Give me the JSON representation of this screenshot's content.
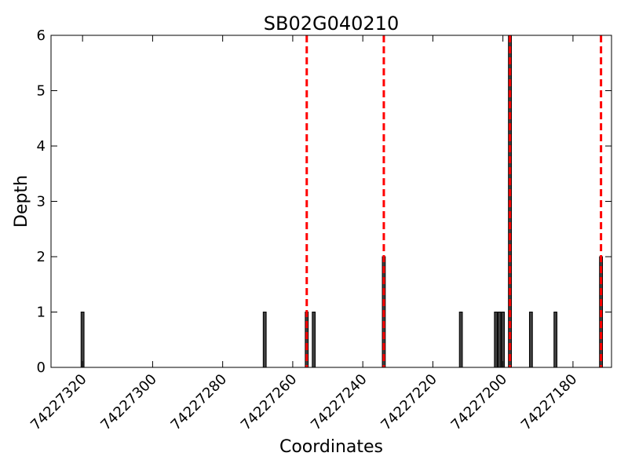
{
  "chart_data": {
    "type": "bar",
    "title": "SB02G040210",
    "xlabel": "Coordinates",
    "ylabel": "Depth",
    "x_reversed": true,
    "xlim": [
      74227329,
      74227169
    ],
    "ylim": [
      0,
      6
    ],
    "grid": false,
    "xticks": [
      {
        "value": 74227320,
        "label": "74227320"
      },
      {
        "value": 74227300,
        "label": "74227300"
      },
      {
        "value": 74227280,
        "label": "74227280"
      },
      {
        "value": 74227260,
        "label": "74227260"
      },
      {
        "value": 74227240,
        "label": "74227240"
      },
      {
        "value": 74227220,
        "label": "74227220"
      },
      {
        "value": 74227200,
        "label": "74227200"
      },
      {
        "value": 74227180,
        "label": "74227180"
      }
    ],
    "yticks": [
      {
        "value": 0,
        "label": "0"
      },
      {
        "value": 1,
        "label": "1"
      },
      {
        "value": 2,
        "label": "2"
      },
      {
        "value": 3,
        "label": "3"
      },
      {
        "value": 4,
        "label": "4"
      },
      {
        "value": 5,
        "label": "5"
      },
      {
        "value": 6,
        "label": "6"
      }
    ],
    "bars": [
      {
        "x": 74227320,
        "depth": 1
      },
      {
        "x": 74227268,
        "depth": 1
      },
      {
        "x": 74227256,
        "depth": 1
      },
      {
        "x": 74227254,
        "depth": 1
      },
      {
        "x": 74227234,
        "depth": 2
      },
      {
        "x": 74227212,
        "depth": 1
      },
      {
        "x": 74227202,
        "depth": 1
      },
      {
        "x": 74227201,
        "depth": 1
      },
      {
        "x": 74227200,
        "depth": 1
      },
      {
        "x": 74227198,
        "depth": 6
      },
      {
        "x": 74227192,
        "depth": 1
      },
      {
        "x": 74227185,
        "depth": 1
      },
      {
        "x": 74227172,
        "depth": 2
      }
    ],
    "reference_lines": [
      74227256,
      74227234,
      74227198,
      74227172
    ],
    "bar_color": "#404040",
    "reference_line_color": "#ff0000"
  }
}
